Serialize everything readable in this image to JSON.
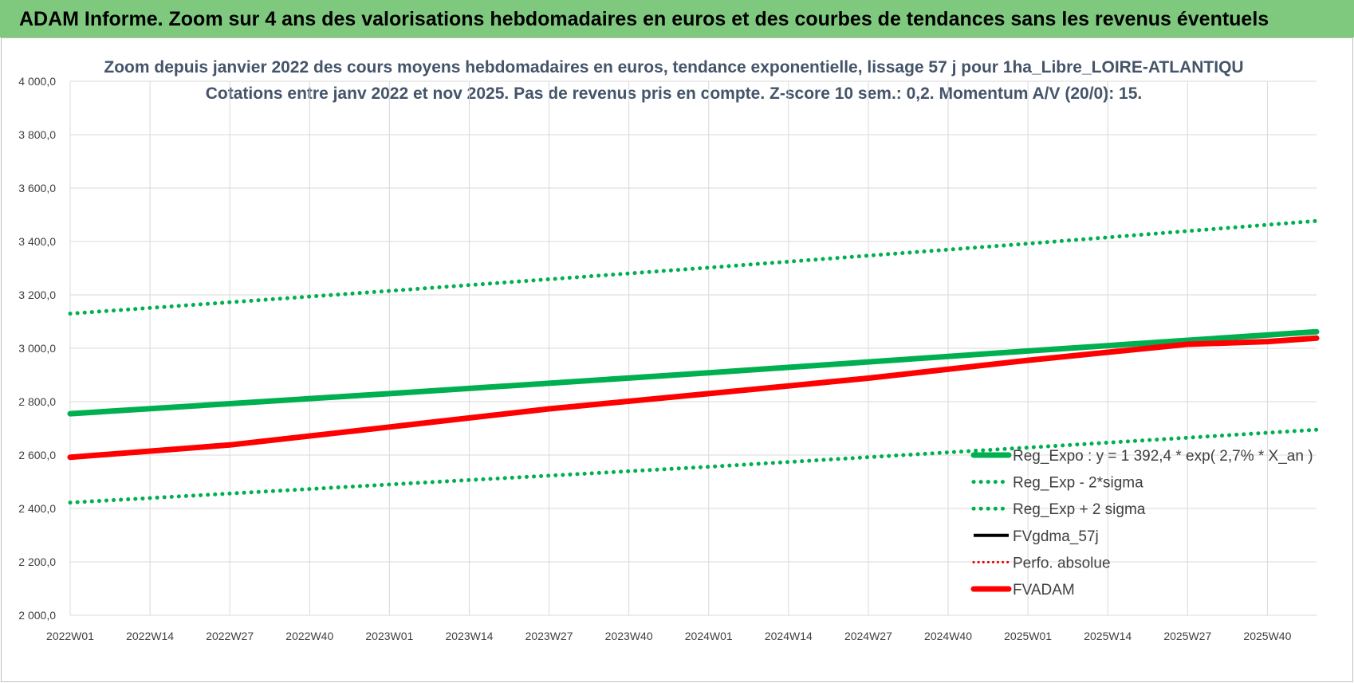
{
  "banner": {
    "title": "ADAM Informe. Zoom sur 4 ans des valorisations hebdomadaires en euros et des courbes de tendances sans les revenus éventuels"
  },
  "chart_data": {
    "type": "line",
    "title": [
      "Zoom depuis janvier 2022 des cours moyens hebdomadaires en euros, tendance exponentielle, lissage 57 j pour 1ha_Libre_LOIRE-ATLANTIQU",
      "Cotations entre janv 2022 et nov 2025. Pas de revenus pris en compte. Z-score 10 sem.: 0,2. Momentum A/V (20/0): 15."
    ],
    "xlabel": "",
    "ylabel": "",
    "ylim": [
      2000,
      4000
    ],
    "yticks": [
      2000,
      2200,
      2400,
      2600,
      2800,
      3000,
      3200,
      3400,
      3600,
      3800,
      4000
    ],
    "ytick_labels": [
      "2 000,0",
      "2 200,0",
      "2 400,0",
      "2 600,0",
      "2 800,0",
      "3 000,0",
      "3 200,0",
      "3 400,0",
      "3 600,0",
      "3 800,0",
      "4 000,0"
    ],
    "x_range_weeks": [
      0,
      203
    ],
    "x_ticks": [
      {
        "label": "2022W01",
        "week": 0
      },
      {
        "label": "2022W14",
        "week": 13
      },
      {
        "label": "2022W27",
        "week": 26
      },
      {
        "label": "2022W40",
        "week": 39
      },
      {
        "label": "2023W01",
        "week": 52
      },
      {
        "label": "2023W14",
        "week": 65
      },
      {
        "label": "2023W27",
        "week": 78
      },
      {
        "label": "2023W40",
        "week": 91
      },
      {
        "label": "2024W01",
        "week": 104
      },
      {
        "label": "2024W14",
        "week": 117
      },
      {
        "label": "2024W27",
        "week": 130
      },
      {
        "label": "2024W40",
        "week": 143
      },
      {
        "label": "2025W01",
        "week": 156
      },
      {
        "label": "2025W14",
        "week": 169
      },
      {
        "label": "2025W27",
        "week": 182
      },
      {
        "label": "2025W40",
        "week": 195
      }
    ],
    "grid": true,
    "legend_position": "lower-right",
    "series": [
      {
        "name": "Reg_Expo : y = 1 392,4 * exp( 2,7% *  X_an )",
        "color": "#00b050",
        "style": "solid-thick",
        "x": [
          0,
          52,
          104,
          156,
          203
        ],
        "values": [
          2755,
          2830,
          2908,
          2990,
          3062
        ]
      },
      {
        "name": "Reg_Exp - 2*sigma",
        "color": "#00b050",
        "style": "dotted",
        "x": [
          0,
          52,
          104,
          156,
          203
        ],
        "values": [
          2422,
          2490,
          2556,
          2628,
          2695
        ]
      },
      {
        "name": "Reg_Exp + 2 sigma",
        "color": "#00b050",
        "style": "dotted",
        "x": [
          0,
          52,
          104,
          156,
          203
        ],
        "values": [
          3130,
          3215,
          3302,
          3392,
          3477
        ]
      },
      {
        "name": "FVgdma_57j",
        "color": "#000000",
        "style": "solid",
        "x": [],
        "values": []
      },
      {
        "name": "Perfo. absolue",
        "color": "#e00000",
        "style": "dotted-red",
        "x": [],
        "values": []
      },
      {
        "name": "FVADAM",
        "color": "#ff0000",
        "style": "solid-thick",
        "x": [
          0,
          26,
          52,
          78,
          104,
          130,
          156,
          169,
          182,
          195,
          203
        ],
        "values": [
          2592,
          2638,
          2705,
          2773,
          2830,
          2888,
          2955,
          2985,
          3015,
          3025,
          3038
        ]
      }
    ]
  }
}
